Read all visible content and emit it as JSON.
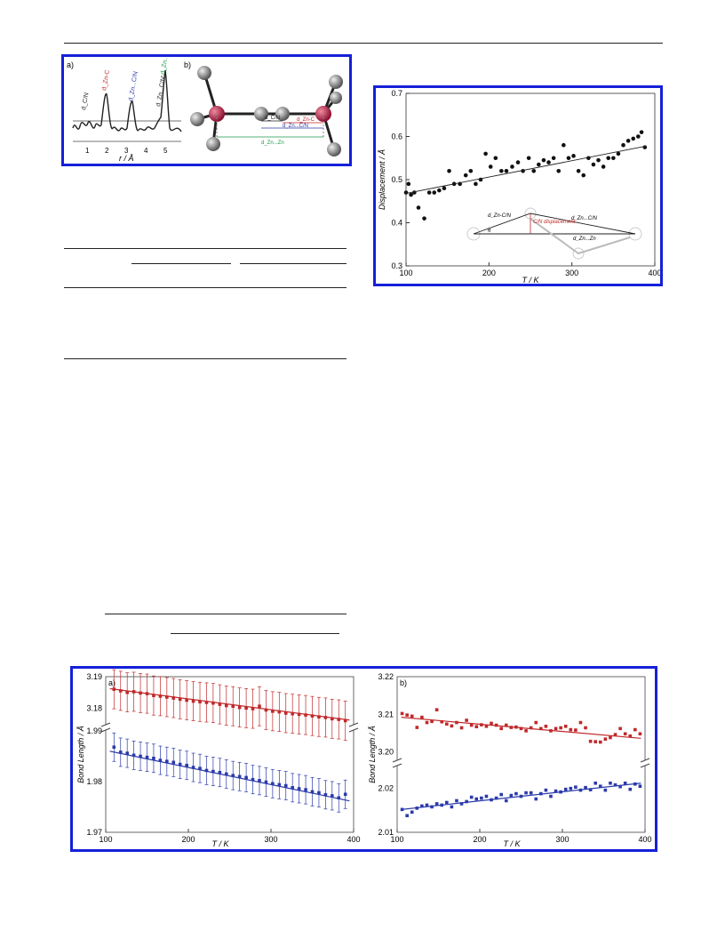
{
  "figure1": {
    "panel_a": {
      "label": "a)",
      "peaks": [
        "d_C/N",
        "d_Zn-C",
        "d_Zn...C/N",
        "d_Zn...C/N'",
        "d_Zn...Zn"
      ],
      "x_ticks": [
        "1",
        "2",
        "3",
        "4",
        "5"
      ],
      "x_label": "r / Å"
    },
    "panel_b": {
      "label": "b)",
      "distances": [
        "d_C/N",
        "d_Zn-C",
        "d_Zn...C/N",
        "d_Zn...Zn"
      ]
    }
  },
  "figure2": {
    "inset": {
      "labels": [
        "d_Zn-C/N",
        "d_Zn...C/N",
        "C/N displacement",
        "d_Zn...Zn",
        "θ"
      ]
    },
    "chart_data": {
      "type": "scatter",
      "title": "",
      "xlabel": "T / K",
      "ylabel": "Displacement / Å",
      "xlim": [
        100,
        400
      ],
      "ylim": [
        0.3,
        0.7
      ],
      "x_ticks": [
        100,
        200,
        300,
        400
      ],
      "y_ticks": [
        0.3,
        0.4,
        0.5,
        0.6,
        0.7
      ],
      "points": [
        [
          100,
          0.47
        ],
        [
          103,
          0.49
        ],
        [
          106,
          0.465
        ],
        [
          110,
          0.47
        ],
        [
          115,
          0.435
        ],
        [
          122,
          0.41
        ],
        [
          128,
          0.47
        ],
        [
          134,
          0.47
        ],
        [
          140,
          0.475
        ],
        [
          146,
          0.48
        ],
        [
          152,
          0.52
        ],
        [
          158,
          0.49
        ],
        [
          165,
          0.49
        ],
        [
          172,
          0.51
        ],
        [
          178,
          0.52
        ],
        [
          184,
          0.49
        ],
        [
          190,
          0.5
        ],
        [
          196,
          0.56
        ],
        [
          202,
          0.53
        ],
        [
          208,
          0.55
        ],
        [
          215,
          0.52
        ],
        [
          221,
          0.52
        ],
        [
          228,
          0.53
        ],
        [
          235,
          0.54
        ],
        [
          241,
          0.52
        ],
        [
          248,
          0.55
        ],
        [
          254,
          0.52
        ],
        [
          260,
          0.535
        ],
        [
          266,
          0.545
        ],
        [
          272,
          0.54
        ],
        [
          278,
          0.55
        ],
        [
          284,
          0.52
        ],
        [
          290,
          0.58
        ],
        [
          296,
          0.55
        ],
        [
          302,
          0.555
        ],
        [
          308,
          0.52
        ],
        [
          314,
          0.51
        ],
        [
          320,
          0.55
        ],
        [
          326,
          0.535
        ],
        [
          332,
          0.545
        ],
        [
          338,
          0.53
        ],
        [
          344,
          0.55
        ],
        [
          350,
          0.55
        ],
        [
          356,
          0.56
        ],
        [
          362,
          0.58
        ],
        [
          368,
          0.59
        ],
        [
          374,
          0.595
        ],
        [
          380,
          0.6
        ],
        [
          384,
          0.61
        ],
        [
          388,
          0.575
        ]
      ],
      "fit_line": [
        [
          100,
          0.468
        ],
        [
          390,
          0.578
        ]
      ]
    }
  },
  "figure3": {
    "chart_data": [
      {
        "type": "scatter",
        "label": "a)",
        "xlabel": "T / K",
        "ylabel": "Bond Length / Å",
        "xlim": [
          100,
          400
        ],
        "upper_ticks": [
          "3.19",
          "3.18"
        ],
        "lower_ticks": [
          "1.99",
          "1.98",
          "1.97"
        ],
        "x_ticks": [
          100,
          200,
          300,
          400
        ],
        "series": [
          {
            "color": "#c0282a",
            "x": [
              110,
              118,
              126,
              134,
              142,
              150,
              158,
              166,
              174,
              182,
              190,
              198,
              206,
              214,
              222,
              230,
              238,
              246,
              254,
              262,
              270,
              278,
              286,
              294,
              302,
              310,
              318,
              326,
              334,
              342,
              350,
              358,
              366,
              374,
              382,
              390
            ],
            "y": [
              3.186,
              3.1855,
              3.185,
              3.1852,
              3.1848,
              3.1846,
              3.184,
              3.1838,
              3.1835,
              3.1832,
              3.1828,
              3.1825,
              3.1822,
              3.182,
              3.1818,
              3.1816,
              3.1812,
              3.1808,
              3.1806,
              3.1802,
              3.18,
              3.1798,
              3.1806,
              3.1794,
              3.179,
              3.1788,
              3.1784,
              3.1782,
              3.178,
              3.1778,
              3.1775,
              3.1772,
              3.177,
              3.1766,
              3.1764,
              3.176
            ],
            "fit": [
              [
                105,
                3.1862
              ],
              [
                395,
                3.1762
              ]
            ]
          },
          {
            "color": "#2b3aaa",
            "x": [
              110,
              118,
              126,
              134,
              142,
              150,
              158,
              166,
              174,
              182,
              190,
              198,
              206,
              214,
              222,
              230,
              238,
              246,
              254,
              262,
              270,
              278,
              286,
              294,
              302,
              310,
              318,
              326,
              334,
              342,
              350,
              358,
              366,
              374,
              382,
              390
            ],
            "y": [
              1.9868,
              1.9858,
              1.9856,
              1.9852,
              1.985,
              1.9848,
              1.9846,
              1.9842,
              1.984,
              1.9838,
              1.9834,
              1.9832,
              1.9828,
              1.9826,
              1.9822,
              1.982,
              1.9818,
              1.9815,
              1.9812,
              1.981,
              1.9808,
              1.9804,
              1.9802,
              1.9799,
              1.9796,
              1.9794,
              1.9792,
              1.9788,
              1.9786,
              1.9784,
              1.978,
              1.9778,
              1.9774,
              1.9772,
              1.9768,
              1.9775
            ],
            "fit": [
              [
                105,
                1.986
              ],
              [
                395,
                1.9762
              ]
            ]
          }
        ]
      },
      {
        "type": "scatter",
        "label": "b)",
        "xlabel": "T / K",
        "ylabel": "Bond Length / Å",
        "xlim": [
          100,
          400
        ],
        "upper_ticks": [
          "3.22",
          "3.21",
          "3.20"
        ],
        "lower_ticks": [
          "2.02",
          "2.01"
        ],
        "x_ticks": [
          100,
          200,
          300,
          400
        ],
        "series": [
          {
            "color": "#c0282a",
            "x": [
              106,
              112,
              118,
              124,
              130,
              136,
              142,
              148,
              154,
              160,
              166,
              172,
              178,
              184,
              190,
              196,
              202,
              208,
              214,
              220,
              226,
              232,
              238,
              244,
              250,
              256,
              262,
              268,
              274,
              280,
              286,
              292,
              298,
              304,
              310,
              316,
              322,
              328,
              334,
              340,
              346,
              352,
              358,
              364,
              370,
              376,
              382,
              388,
              394
            ],
            "y": [
              3.2102,
              3.2098,
              3.2095,
              3.2065,
              3.2092,
              3.2078,
              3.2081,
              3.2112,
              3.208,
              3.2074,
              3.2069,
              3.2078,
              3.2064,
              3.2084,
              3.2071,
              3.2067,
              3.2072,
              3.2068,
              3.2076,
              3.2071,
              3.2062,
              3.2071,
              3.2065,
              3.2066,
              3.2062,
              3.2056,
              3.2064,
              3.2078,
              3.2062,
              3.2068,
              3.2056,
              3.2062,
              3.2064,
              3.2068,
              3.2059,
              3.2058,
              3.2078,
              3.2064,
              3.2028,
              3.2027,
              3.2026,
              3.2034,
              3.2038,
              3.2046,
              3.2062,
              3.2048,
              3.2042,
              3.2059,
              3.2048
            ],
            "fit": [
              [
                105,
                3.2092
              ],
              [
                395,
                3.2036
              ]
            ]
          },
          {
            "color": "#2b3aaa",
            "x": [
              106,
              112,
              118,
              124,
              130,
              136,
              142,
              148,
              154,
              160,
              166,
              172,
              178,
              184,
              190,
              196,
              202,
              208,
              214,
              220,
              226,
              232,
              238,
              244,
              250,
              256,
              262,
              268,
              274,
              280,
              286,
              292,
              298,
              304,
              310,
              316,
              322,
              328,
              334,
              340,
              346,
              352,
              358,
              364,
              370,
              376,
              382,
              388,
              394
            ],
            "y": [
              2.0152,
              2.0138,
              2.0146,
              2.0155,
              2.016,
              2.0162,
              2.0158,
              2.0165,
              2.0162,
              2.0168,
              2.0158,
              2.0172,
              2.0165,
              2.017,
              2.018,
              2.0176,
              2.0178,
              2.0182,
              2.0174,
              2.0178,
              2.0186,
              2.0172,
              2.0184,
              2.0188,
              2.0182,
              2.019,
              2.019,
              2.0176,
              2.0188,
              2.0196,
              2.0182,
              2.0194,
              2.0192,
              2.0198,
              2.02,
              2.0203,
              2.0196,
              2.0202,
              2.0197,
              2.0212,
              2.0205,
              2.0196,
              2.0212,
              2.0208,
              2.0204,
              2.0212,
              2.0198,
              2.021,
              2.0205
            ],
            "fit": [
              [
                105,
                2.0152
              ],
              [
                395,
                2.0212
              ]
            ]
          }
        ]
      }
    ]
  }
}
